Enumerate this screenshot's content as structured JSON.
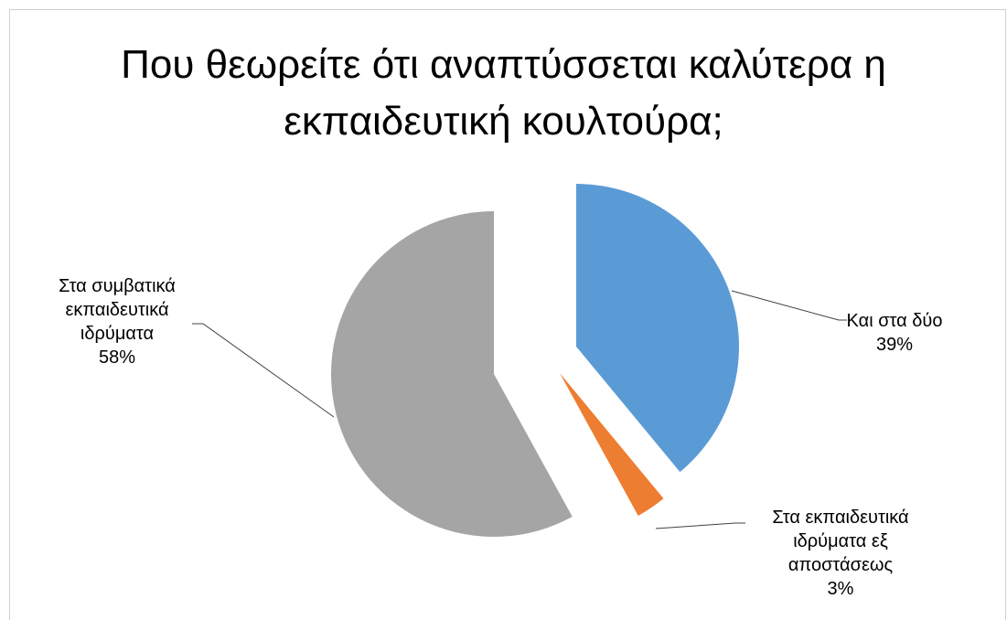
{
  "chart_data": {
    "type": "pie",
    "title_lines": [
      "Που θεωρείτε ότι αναπτύσσεται καλύτερα η",
      "εκπαιδευτική κουλτούρα;"
    ],
    "start_angle_deg": 0,
    "exploded": true,
    "slices": [
      {
        "label_lines": [
          "Και στα δύο"
        ],
        "percent_label": "39%",
        "value": 39,
        "color": "#5b9bd5"
      },
      {
        "label_lines": [
          "Στα εκπαιδευτικά",
          "ιδρύματα εξ",
          "αποστάσεως"
        ],
        "percent_label": "3%",
        "value": 3,
        "color": "#ed7d31"
      },
      {
        "label_lines": [
          "Στα συμβατικά",
          "εκπαιδευτικά",
          "ιδρύματα"
        ],
        "percent_label": "58%",
        "value": 58,
        "color": "#a5a5a5"
      }
    ]
  }
}
